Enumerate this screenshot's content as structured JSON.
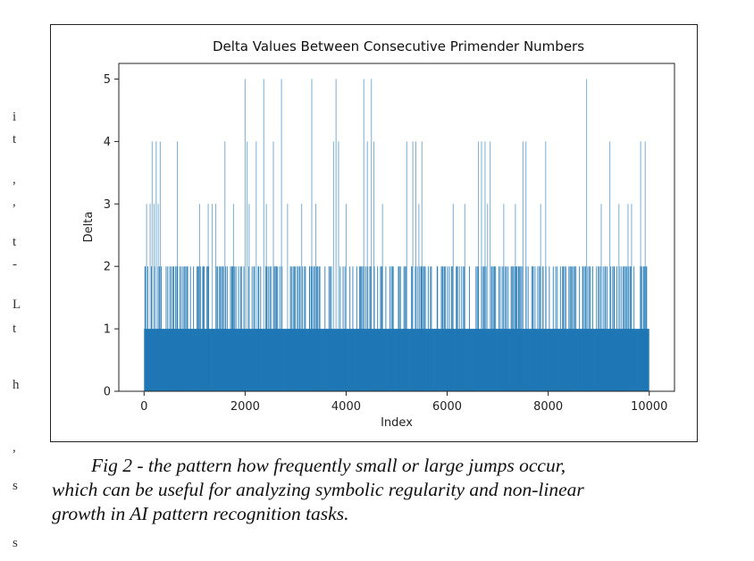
{
  "chart_data": {
    "type": "bar",
    "title": "Delta Values Between Consecutive Primender Numbers",
    "xlabel": "Index",
    "ylabel": "Delta",
    "xlim": [
      -500,
      10500
    ],
    "ylim": [
      0,
      5.25
    ],
    "xticks": [
      0,
      2000,
      4000,
      6000,
      8000,
      10000
    ],
    "yticks": [
      0,
      1,
      2,
      3,
      4,
      5
    ],
    "grid": false,
    "bar_color": "#1f77b4",
    "n_points": 10000,
    "baseline_value": 1,
    "frequent_value": 2,
    "spikes": [
      {
        "x": 50,
        "y": 3
      },
      {
        "x": 120,
        "y": 3
      },
      {
        "x": 160,
        "y": 4
      },
      {
        "x": 200,
        "y": 3
      },
      {
        "x": 240,
        "y": 4
      },
      {
        "x": 280,
        "y": 3
      },
      {
        "x": 320,
        "y": 4
      },
      {
        "x": 660,
        "y": 4
      },
      {
        "x": 1100,
        "y": 3
      },
      {
        "x": 1270,
        "y": 3
      },
      {
        "x": 1350,
        "y": 3
      },
      {
        "x": 1420,
        "y": 3
      },
      {
        "x": 1600,
        "y": 4
      },
      {
        "x": 1770,
        "y": 3
      },
      {
        "x": 2000,
        "y": 5
      },
      {
        "x": 2040,
        "y": 4
      },
      {
        "x": 2080,
        "y": 3
      },
      {
        "x": 2220,
        "y": 4
      },
      {
        "x": 2370,
        "y": 5
      },
      {
        "x": 2420,
        "y": 3
      },
      {
        "x": 2560,
        "y": 4
      },
      {
        "x": 2720,
        "y": 5
      },
      {
        "x": 2840,
        "y": 3
      },
      {
        "x": 3120,
        "y": 3
      },
      {
        "x": 3320,
        "y": 5
      },
      {
        "x": 3400,
        "y": 3
      },
      {
        "x": 3750,
        "y": 4
      },
      {
        "x": 3800,
        "y": 5
      },
      {
        "x": 3850,
        "y": 4
      },
      {
        "x": 4000,
        "y": 3
      },
      {
        "x": 4350,
        "y": 5
      },
      {
        "x": 4420,
        "y": 4
      },
      {
        "x": 4500,
        "y": 5
      },
      {
        "x": 4550,
        "y": 4
      },
      {
        "x": 4720,
        "y": 3
      },
      {
        "x": 5200,
        "y": 4
      },
      {
        "x": 5320,
        "y": 4
      },
      {
        "x": 5380,
        "y": 4
      },
      {
        "x": 5440,
        "y": 3
      },
      {
        "x": 5500,
        "y": 4
      },
      {
        "x": 6120,
        "y": 3
      },
      {
        "x": 6350,
        "y": 3
      },
      {
        "x": 6620,
        "y": 4
      },
      {
        "x": 6680,
        "y": 4
      },
      {
        "x": 6750,
        "y": 4
      },
      {
        "x": 6800,
        "y": 3
      },
      {
        "x": 6850,
        "y": 4
      },
      {
        "x": 7120,
        "y": 3
      },
      {
        "x": 7350,
        "y": 3
      },
      {
        "x": 7500,
        "y": 4
      },
      {
        "x": 7560,
        "y": 4
      },
      {
        "x": 7850,
        "y": 3
      },
      {
        "x": 7950,
        "y": 4
      },
      {
        "x": 8760,
        "y": 5
      },
      {
        "x": 9050,
        "y": 3
      },
      {
        "x": 9220,
        "y": 4
      },
      {
        "x": 9400,
        "y": 3
      },
      {
        "x": 9580,
        "y": 3
      },
      {
        "x": 9650,
        "y": 3
      },
      {
        "x": 9830,
        "y": 4
      },
      {
        "x": 9920,
        "y": 4
      }
    ]
  },
  "caption": {
    "line1": "Fig 2 -  the pattern how frequently small or large jumps occur,",
    "line2": "which can be useful for analyzing symbolic regularity and non-linear",
    "line3": "growth in AI pattern recognition tasks."
  },
  "margin_marks": [
    "i",
    "t",
    ",",
    ",",
    "t",
    "-",
    "L",
    "t",
    "h",
    ",",
    "s",
    "s"
  ]
}
